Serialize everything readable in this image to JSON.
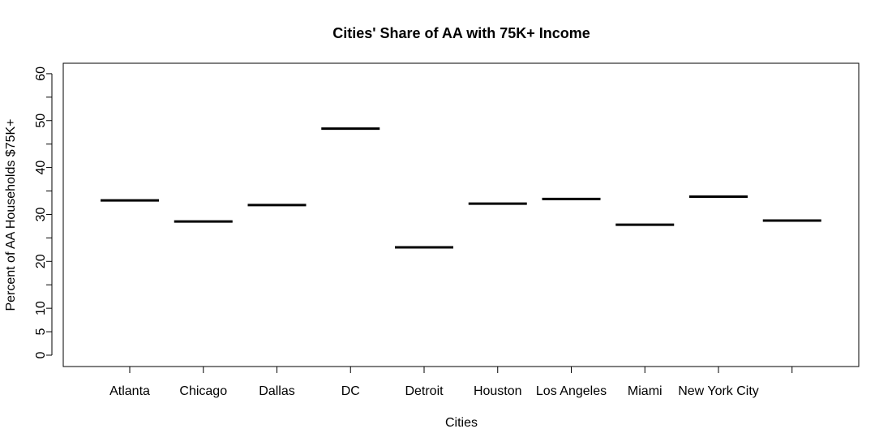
{
  "chart_data": {
    "type": "boxplot",
    "title": "Cities' Share of AA with 75K+ Income",
    "xlabel": "Cities",
    "ylabel": "Percent of AA Households $75K+",
    "categories": [
      "Atlanta",
      "Chicago",
      "Dallas",
      "DC",
      "Detroit",
      "Houston",
      "Los Angeles",
      "Miami",
      "New York City",
      ""
    ],
    "values": [
      33.0,
      28.5,
      32.0,
      48.3,
      23.0,
      32.3,
      33.3,
      27.8,
      33.8,
      28.7
    ],
    "yticks": [
      0,
      5,
      10,
      20,
      30,
      40,
      50,
      60
    ],
    "yminor_ticks": [
      15,
      25,
      35,
      45,
      55
    ],
    "ylim": [
      -2.2,
      62.5
    ],
    "grid": false,
    "legend": "none",
    "colors": {
      "median": "#000000",
      "axis": "#000000",
      "background": "#ffffff"
    }
  }
}
